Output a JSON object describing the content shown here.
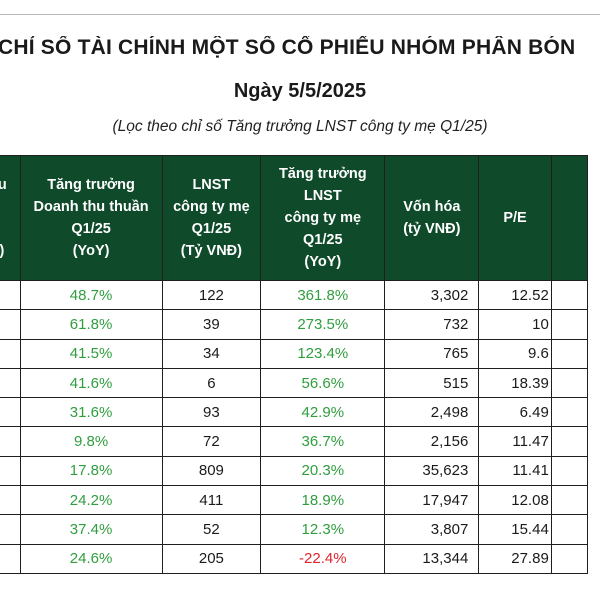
{
  "header": {
    "title": "CHỈ SỐ TÀI CHÍNH MỘT SỐ CỔ PHIẾU NHÓM PHÂN BÓN",
    "date": "Ngày 5/5/2025",
    "subtitle": "(Lọc theo chỉ số Tăng trưởng LNST công ty mẹ Q1/25)"
  },
  "table": {
    "columns": [
      {
        "key": "rev_partial",
        "lines": [
          "hu",
          "",
          "",
          "Đ)"
        ]
      },
      {
        "key": "rev_growth",
        "lines": [
          "Tăng trưởng",
          "Doanh thu thuần",
          "Q1/25",
          "(YoY)"
        ]
      },
      {
        "key": "profit",
        "lines": [
          "LNST",
          "công ty mẹ",
          "Q1/25",
          "(Tỷ VNĐ)"
        ]
      },
      {
        "key": "profit_growth",
        "lines": [
          "Tăng trưởng",
          "LNST",
          "công ty mẹ",
          "Q1/25",
          "(YoY)"
        ]
      },
      {
        "key": "mcap",
        "lines": [
          "Vốn hóa",
          "(tỷ VNĐ)"
        ]
      },
      {
        "key": "pe",
        "lines": [
          "P/E"
        ]
      }
    ],
    "rows": [
      {
        "rev_growth": "48.7%",
        "profit": "122",
        "profit_growth": "361.8%",
        "mcap": "3,302",
        "pe": "12.52"
      },
      {
        "rev_growth": "61.8%",
        "profit": "39",
        "profit_growth": "273.5%",
        "mcap": "732",
        "pe": "10"
      },
      {
        "rev_growth": "41.5%",
        "profit": "34",
        "profit_growth": "123.4%",
        "mcap": "765",
        "pe": "9.6"
      },
      {
        "rev_growth": "41.6%",
        "profit": "6",
        "profit_growth": "56.6%",
        "mcap": "515",
        "pe": "18.39"
      },
      {
        "rev_growth": "31.6%",
        "profit": "93",
        "profit_growth": "42.9%",
        "mcap": "2,498",
        "pe": "6.49"
      },
      {
        "rev_growth": "9.8%",
        "profit": "72",
        "profit_growth": "36.7%",
        "mcap": "2,156",
        "pe": "11.47"
      },
      {
        "rev_growth": "17.8%",
        "profit": "809",
        "profit_growth": "20.3%",
        "mcap": "35,623",
        "pe": "11.41"
      },
      {
        "rev_growth": "24.2%",
        "profit": "411",
        "profit_growth": "18.9%",
        "mcap": "17,947",
        "pe": "12.08"
      },
      {
        "rev_growth": "37.4%",
        "profit": "52",
        "profit_growth": "12.3%",
        "mcap": "3,807",
        "pe": "15.44"
      },
      {
        "rev_growth": "24.6%",
        "profit": "205",
        "profit_growth": "-22.4%",
        "mcap": "13,344",
        "pe": "27.89",
        "negative": true
      }
    ]
  },
  "colors": {
    "header_bg": "#0f4a2b",
    "positive": "#2f9e3e",
    "negative": "#e0242e"
  }
}
